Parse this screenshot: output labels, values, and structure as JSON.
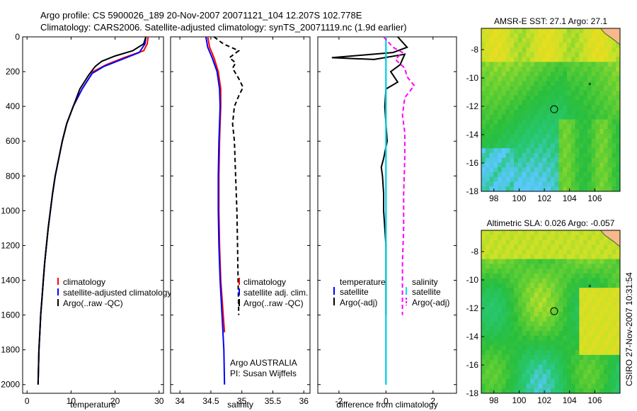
{
  "header": {
    "line1": "Argo profile: CS 5900026_189 20-Nov-2007 20071121_104 12.207S 102.778E",
    "line2": "Climatology: CARS2006. Satellite-adjusted climatology: synTS_20071119.nc (1.9d earlier)"
  },
  "footer": {
    "credit": "CSIRO 27-Nov-2007 10:31:54"
  },
  "colors": {
    "climatology": "#ff0000",
    "satellite": "#0000ff",
    "argo": "#000000",
    "salinity_argo": "#ff00ff",
    "salinity_sat": "#00e5e5"
  },
  "chart_data": [
    {
      "type": "line",
      "xlabel": "temperature",
      "ylabel": "",
      "xlim": [
        -1,
        31
      ],
      "ylim": [
        0,
        2050
      ],
      "y_reversed": true,
      "xticks": [
        0,
        10,
        20,
        30
      ],
      "yticks": [
        0,
        200,
        400,
        600,
        800,
        1000,
        1200,
        1400,
        1600,
        1800,
        2000
      ],
      "legend": [
        "climatology",
        "satellite-adjusted climatology",
        "Argo(..raw -QC)"
      ],
      "series": [
        {
          "name": "climatology",
          "style": "solid",
          "points": [
            [
              27.5,
              0
            ],
            [
              27.3,
              40
            ],
            [
              26.5,
              80
            ],
            [
              22,
              120
            ],
            [
              18,
              160
            ],
            [
              15,
              200
            ],
            [
              12.5,
              300
            ],
            [
              10.5,
              400
            ],
            [
              9,
              500
            ],
            [
              8,
              600
            ],
            [
              7.2,
              700
            ],
            [
              6.4,
              800
            ],
            [
              5.8,
              900
            ],
            [
              5.3,
              1000
            ],
            [
              4.8,
              1100
            ],
            [
              4.4,
              1200
            ],
            [
              4,
              1300
            ],
            [
              3.7,
              1400
            ],
            [
              3.4,
              1500
            ],
            [
              3.1,
              1600
            ],
            [
              2.9,
              1700
            ],
            [
              2.7,
              1800
            ],
            [
              2.6,
              1900
            ],
            [
              2.5,
              2000
            ]
          ]
        },
        {
          "name": "satellite-adjusted climatology",
          "style": "solid",
          "points": [
            [
              27,
              0
            ],
            [
              26.8,
              40
            ],
            [
              25.5,
              90
            ],
            [
              21.5,
              130
            ],
            [
              17.5,
              170
            ],
            [
              14.8,
              210
            ],
            [
              12.5,
              300
            ],
            [
              10.5,
              400
            ],
            [
              9,
              500
            ],
            [
              8,
              600
            ],
            [
              7.2,
              700
            ],
            [
              6.4,
              800
            ],
            [
              5.8,
              900
            ],
            [
              5.3,
              1000
            ],
            [
              4.8,
              1100
            ],
            [
              4.4,
              1200
            ],
            [
              4,
              1300
            ],
            [
              3.7,
              1400
            ],
            [
              3.4,
              1500
            ],
            [
              3.1,
              1600
            ],
            [
              2.9,
              1700
            ],
            [
              2.7,
              1800
            ],
            [
              2.6,
              1900
            ],
            [
              2.5,
              2000
            ]
          ]
        },
        {
          "name": "Argo(..raw -QC)",
          "style": "solid",
          "points": [
            [
              27,
              0
            ],
            [
              26.5,
              40
            ],
            [
              24,
              80
            ],
            [
              20,
              110
            ],
            [
              17,
              140
            ],
            [
              15.5,
              170
            ],
            [
              14,
              220
            ],
            [
              12,
              300
            ],
            [
              10.5,
              400
            ],
            [
              9,
              500
            ],
            [
              8,
              600
            ],
            [
              7.2,
              700
            ],
            [
              6.4,
              800
            ],
            [
              5.8,
              900
            ],
            [
              5.3,
              1000
            ],
            [
              4.8,
              1100
            ],
            [
              4.4,
              1200
            ],
            [
              4,
              1300
            ],
            [
              3.7,
              1400
            ],
            [
              3.4,
              1500
            ],
            [
              3.1,
              1600
            ],
            [
              2.9,
              1700
            ],
            [
              2.7,
              1800
            ],
            [
              2.6,
              1900
            ],
            [
              2.5,
              2000
            ]
          ]
        }
      ]
    },
    {
      "type": "line",
      "xlabel": "salinity",
      "ylabel": "",
      "xlim": [
        33.85,
        36.1
      ],
      "ylim": [
        0,
        2050
      ],
      "y_reversed": true,
      "xticks": [
        34,
        34.5,
        35,
        35.5,
        36
      ],
      "legend": [
        "climatology",
        "satellite adj. clim.",
        "Argo(..raw -QC)"
      ],
      "annotations": [
        "Argo AUSTRALIA",
        "PI: Susan Wijffels"
      ],
      "series": [
        {
          "name": "climatology",
          "style": "solid",
          "points": [
            [
              34.45,
              0
            ],
            [
              34.48,
              60
            ],
            [
              34.55,
              120
            ],
            [
              34.62,
              200
            ],
            [
              34.66,
              300
            ],
            [
              34.66,
              400
            ],
            [
              34.65,
              500
            ],
            [
              34.64,
              600
            ],
            [
              34.63,
              800
            ],
            [
              34.63,
              1000
            ],
            [
              34.64,
              1200
            ],
            [
              34.66,
              1400
            ],
            [
              34.7,
              1600
            ],
            [
              34.72,
              1700
            ]
          ]
        },
        {
          "name": "satellite adj. clim.",
          "style": "solid",
          "points": [
            [
              34.42,
              0
            ],
            [
              34.45,
              60
            ],
            [
              34.52,
              120
            ],
            [
              34.6,
              200
            ],
            [
              34.64,
              300
            ],
            [
              34.65,
              400
            ],
            [
              34.64,
              500
            ],
            [
              34.63,
              600
            ],
            [
              34.62,
              800
            ],
            [
              34.62,
              1000
            ],
            [
              34.63,
              1200
            ],
            [
              34.65,
              1400
            ],
            [
              34.68,
              1600
            ],
            [
              34.71,
              1800
            ],
            [
              34.72,
              2000
            ]
          ]
        },
        {
          "name": "Argo(..raw -QC)",
          "style": "dashed",
          "points": [
            [
              34.55,
              0
            ],
            [
              34.7,
              40
            ],
            [
              34.95,
              80
            ],
            [
              34.8,
              120
            ],
            [
              34.9,
              150
            ],
            [
              34.85,
              180
            ],
            [
              34.95,
              240
            ],
            [
              35.02,
              290
            ],
            [
              34.95,
              340
            ],
            [
              34.88,
              400
            ],
            [
              34.85,
              500
            ],
            [
              34.88,
              600
            ],
            [
              34.9,
              800
            ],
            [
              34.92,
              1000
            ],
            [
              34.93,
              1200
            ],
            [
              34.94,
              1400
            ],
            [
              34.95,
              1600
            ]
          ]
        }
      ]
    },
    {
      "type": "line",
      "xlabel": "difference from climatology",
      "ylabel": "",
      "xlim": [
        -2.9,
        3
      ],
      "ylim": [
        0,
        2050
      ],
      "y_reversed": true,
      "xticks": [
        -2,
        0,
        2
      ],
      "legend": [
        "temperature",
        "satellite",
        "Argo(-adj)",
        "salinity",
        "satellite",
        "Argo(-adj)"
      ],
      "series": [
        {
          "name": "temperature satellite",
          "style": "solid",
          "points": [
            [
              0,
              0
            ],
            [
              0,
              2000
            ]
          ]
        },
        {
          "name": "temperature Argo(-adj)",
          "style": "solid",
          "points": [
            [
              0.5,
              0
            ],
            [
              0.9,
              60
            ],
            [
              0.3,
              90
            ],
            [
              -2.3,
              120
            ],
            [
              -0.5,
              130
            ],
            [
              0.8,
              100
            ],
            [
              0.6,
              160
            ],
            [
              0.2,
              200
            ],
            [
              0.5,
              260
            ],
            [
              0,
              300
            ],
            [
              -0.05,
              400
            ],
            [
              0,
              500
            ],
            [
              0.05,
              600
            ],
            [
              -0.1,
              700
            ],
            [
              -0.2,
              750
            ],
            [
              -0.15,
              800
            ],
            [
              -0.1,
              900
            ],
            [
              -0.1,
              1000
            ],
            [
              -0.05,
              1100
            ],
            [
              0,
              1200
            ],
            [
              0,
              1600
            ]
          ]
        },
        {
          "name": "salinity satellite",
          "style": "solid",
          "points": [
            [
              0,
              0
            ],
            [
              0,
              2000
            ]
          ]
        },
        {
          "name": "salinity Argo(-adj)",
          "style": "dashed",
          "points": [
            [
              -0.1,
              0
            ],
            [
              0.3,
              60
            ],
            [
              0.7,
              90
            ],
            [
              0.4,
              130
            ],
            [
              0.8,
              180
            ],
            [
              0.9,
              230
            ],
            [
              1.2,
              280
            ],
            [
              0.8,
              350
            ],
            [
              0.7,
              450
            ],
            [
              0.8,
              550
            ],
            [
              0.8,
              700
            ],
            [
              0.75,
              900
            ],
            [
              0.75,
              1100
            ],
            [
              0.7,
              1300
            ],
            [
              0.7,
              1500
            ],
            [
              0.7,
              1600
            ]
          ]
        }
      ]
    },
    {
      "type": "heatmap",
      "title": "AMSR-E SST: 27.1 Argo: 27.1",
      "xlim": [
        97,
        108
      ],
      "ylim": [
        -18,
        -6.5
      ],
      "xticks": [
        98,
        100,
        102,
        104,
        106
      ],
      "yticks": [
        -8,
        -10,
        -12,
        -14,
        -16,
        -18
      ],
      "argo_position": [
        102.778,
        -12.207
      ],
      "marker_star": [
        105.6,
        -10.5
      ]
    },
    {
      "type": "heatmap",
      "title": "Altimetric SLA: 0.026 Argo: -0.057",
      "xlim": [
        97,
        108
      ],
      "ylim": [
        -18,
        -6.5
      ],
      "xticks": [
        98,
        100,
        102,
        104,
        106
      ],
      "yticks": [
        -8,
        -10,
        -12,
        -14,
        -16,
        -18
      ],
      "argo_position": [
        102.778,
        -12.207
      ],
      "marker_star": [
        105.6,
        -10.5
      ]
    }
  ]
}
